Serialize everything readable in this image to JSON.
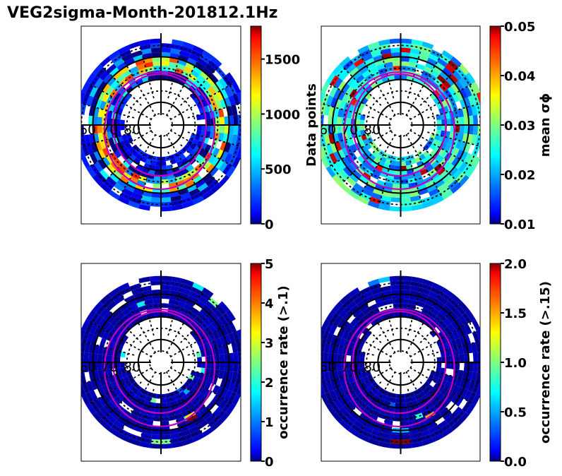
{
  "figure": {
    "title": "VEG2sigma-Month-201812.1Hz"
  },
  "chart_data": [
    {
      "type": "heatmap",
      "projection": "polar (magnetic latitude / MLT)",
      "panel": "top-left",
      "colormap": "jet",
      "colorbar": {
        "label": "Data points",
        "range": [
          0,
          1800
        ],
        "ticks": [
          0,
          500,
          1000,
          1500
        ],
        "tick_labels": [
          "0",
          "500",
          "1000",
          "1500"
        ]
      },
      "latitude_labels": [
        "60",
        "70",
        "80"
      ],
      "latitude_circles": [
        60,
        70,
        80
      ],
      "description": "Ring of bins between ~55 and ~75 deg; highest counts (~1500-1800) in narrow band near 65-70 deg dawn/dusk"
    },
    {
      "type": "heatmap",
      "projection": "polar (magnetic latitude / MLT)",
      "panel": "top-right",
      "colormap": "jet",
      "colorbar": {
        "label": "mean σϕ",
        "range": [
          0.01,
          0.05
        ],
        "ticks": [
          0.01,
          0.02,
          0.03,
          0.04,
          0.05
        ],
        "tick_labels": [
          "0.01",
          "0.02",
          "0.03",
          "0.04",
          "0.05"
        ]
      },
      "latitude_labels": [
        "60",
        "70",
        "80"
      ],
      "latitude_circles": [
        60,
        70,
        80
      ],
      "description": "Mostly 0.02-0.03; highest (~0.045-0.05) in dusk/pre-midnight sector near 60 deg"
    },
    {
      "type": "heatmap",
      "projection": "polar (magnetic latitude / MLT)",
      "panel": "bottom-left",
      "colormap": "jet",
      "colorbar": {
        "label": "occurrence rate (>.1)",
        "range": [
          0,
          5
        ],
        "ticks": [
          0,
          1,
          2,
          3,
          4,
          5
        ],
        "tick_labels": [
          "0",
          "1",
          "2",
          "3",
          "4",
          "5"
        ]
      },
      "latitude_labels": [
        "60",
        "70",
        "80"
      ],
      "latitude_circles": [
        60,
        70,
        80
      ],
      "description": "Near-zero everywhere; isolated bins up to ~5 near midnight at ~65 deg"
    },
    {
      "type": "heatmap",
      "projection": "polar (magnetic latitude / MLT)",
      "panel": "bottom-right",
      "colormap": "jet",
      "colorbar": {
        "label": "occurrence rate (>.15)",
        "range": [
          0.0,
          2.0
        ],
        "ticks": [
          0.0,
          0.5,
          1.0,
          1.5,
          2.0
        ],
        "tick_labels": [
          "0.0",
          "0.5",
          "1.0",
          "1.5",
          "2.0"
        ]
      },
      "latitude_labels": [
        "60",
        "70",
        "80"
      ],
      "latitude_circles": [
        60,
        70,
        80
      ],
      "description": "Near-zero everywhere; isolated bins up to ~2.0 at midnight near 55 deg"
    }
  ]
}
